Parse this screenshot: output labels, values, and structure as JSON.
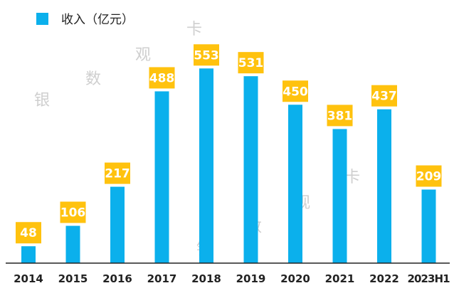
{
  "chart_data": {
    "type": "bar",
    "categories": [
      "2014",
      "2015",
      "2016",
      "2017",
      "2018",
      "2019",
      "2020",
      "2021",
      "2022",
      "2023H1"
    ],
    "series": [
      {
        "name": "收入（亿元）",
        "values": [
          48,
          106,
          217,
          488,
          553,
          531,
          450,
          381,
          437,
          209
        ]
      }
    ],
    "title": "",
    "xlabel": "",
    "ylabel": "",
    "ylim": [
      0,
      600
    ],
    "grid": false,
    "legend": "top-left",
    "data_labels": true
  },
  "colors": {
    "bar": "#0bb0ec",
    "label_box": "#ffc20e",
    "axis": "#222222"
  },
  "watermark": [
    "银",
    "数",
    "观",
    "卡"
  ]
}
